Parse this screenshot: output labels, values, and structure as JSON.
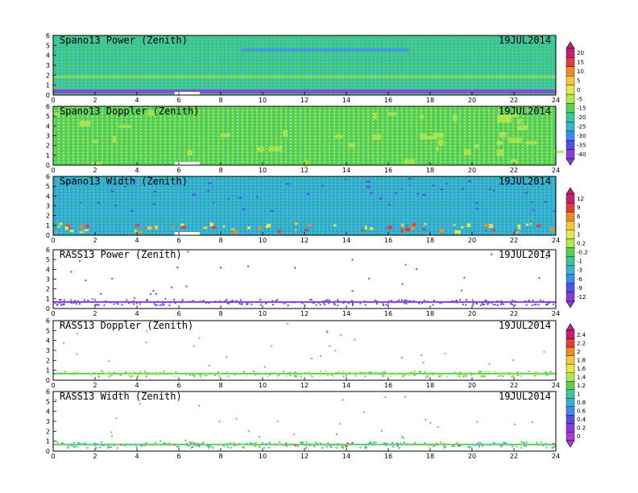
{
  "chart_data": [
    {
      "type": "heatmap",
      "title": "Spano13 Power (Zenith)",
      "date": "19JUL2014",
      "x_ticks": [
        "0",
        "2",
        "4",
        "6",
        "8",
        "10",
        "12",
        "14",
        "16",
        "18",
        "20",
        "22",
        "24"
      ],
      "y_ticks": [
        "0",
        "1",
        "2",
        "3",
        "4",
        "5",
        "6"
      ],
      "xlim": [
        0,
        24
      ],
      "ylim": [
        0,
        6
      ],
      "colorbar": 0
    },
    {
      "type": "heatmap",
      "title": "Spano13 Doppler (Zenith)",
      "date": "19JUL2014",
      "x_ticks": [
        "0",
        "2",
        "4",
        "6",
        "8",
        "10",
        "12",
        "14",
        "16",
        "18",
        "20",
        "22",
        "24"
      ],
      "y_ticks": [
        "0",
        "1",
        "2",
        "3",
        "4",
        "5",
        "6"
      ],
      "xlim": [
        0,
        24
      ],
      "ylim": [
        0,
        6
      ],
      "colorbar": 0
    },
    {
      "type": "heatmap",
      "title": "Spano13 Width (Zenith)",
      "date": "19JUL2014",
      "x_ticks": [
        "0",
        "2",
        "4",
        "6",
        "8",
        "10",
        "12",
        "14",
        "16",
        "18",
        "20",
        "22",
        "24"
      ],
      "y_ticks": [
        "0",
        "1",
        "2",
        "3",
        "4",
        "5",
        "6"
      ],
      "xlim": [
        0,
        24
      ],
      "ylim": [
        0,
        6
      ],
      "colorbar": 1
    },
    {
      "type": "scatter",
      "title": "RASS13 Power (Zenith)",
      "date": "19JUL2014",
      "x_ticks": [
        "0",
        "2",
        "4",
        "6",
        "8",
        "10",
        "12",
        "14",
        "16",
        "18",
        "20",
        "22",
        "24"
      ],
      "y_ticks": [
        "0",
        "1",
        "2",
        "3",
        "4",
        "5",
        "6"
      ],
      "xlim": [
        0,
        24
      ],
      "ylim": [
        0,
        6
      ],
      "colorbar": 1
    },
    {
      "type": "scatter",
      "title": "RASS13 Doppler (Zenith)",
      "date": "19JUL2014",
      "x_ticks": [
        "0",
        "2",
        "4",
        "6",
        "8",
        "10",
        "12",
        "14",
        "16",
        "18",
        "20",
        "22",
        "24"
      ],
      "y_ticks": [
        "0",
        "1",
        "2",
        "3",
        "4",
        "5",
        "6"
      ],
      "xlim": [
        0,
        24
      ],
      "ylim": [
        0,
        6
      ],
      "colorbar": 2
    },
    {
      "type": "scatter",
      "title": "RASS13 Width (Zenith)",
      "date": "19JUL2014",
      "x_ticks": [
        "0",
        "2",
        "4",
        "6",
        "8",
        "10",
        "12",
        "14",
        "16",
        "18",
        "20",
        "22",
        "24"
      ],
      "y_ticks": [
        "0",
        "1",
        "2",
        "3",
        "4",
        "5",
        "6"
      ],
      "xlim": [
        0,
        24
      ],
      "ylim": [
        0,
        6
      ],
      "colorbar": 2
    }
  ],
  "colorbars": [
    {
      "labels": [
        "20",
        "15",
        "10",
        "5",
        "0",
        "-5",
        "-15",
        "-20",
        "-25",
        "-30",
        "-35",
        "-40"
      ],
      "colors": [
        "#c81e78",
        "#e23c3c",
        "#f08c28",
        "#f0c83c",
        "#e6e650",
        "#b4e650",
        "#5ad250",
        "#3cc896",
        "#32b4d2",
        "#3c8cf0",
        "#5050e6",
        "#8c3cdc"
      ]
    },
    {
      "labels": [
        "12",
        "9",
        "6",
        "3",
        "1",
        "0.2",
        "-0.2",
        "-1",
        "-3",
        "-6",
        "-9",
        "-12"
      ],
      "colors": [
        "#c81e78",
        "#e23c3c",
        "#f08c28",
        "#f0c83c",
        "#e6e650",
        "#b4e650",
        "#5ad250",
        "#3cc896",
        "#32b4d2",
        "#3c8cf0",
        "#5050e6",
        "#8c3cdc"
      ]
    },
    {
      "labels": [
        "2.4",
        "2.2",
        "2",
        "1.8",
        "1.6",
        "1.4",
        "1.2",
        "1",
        "0.8",
        "0.6",
        "0.4",
        "0.2",
        "0"
      ],
      "colors": [
        "#c81e78",
        "#e23c3c",
        "#f08c28",
        "#f0c83c",
        "#e6e650",
        "#b4e650",
        "#5ad250",
        "#3cc896",
        "#32b4d2",
        "#3c8cf0",
        "#5050e6",
        "#8c3cdc",
        "#aa3cdc"
      ]
    }
  ]
}
